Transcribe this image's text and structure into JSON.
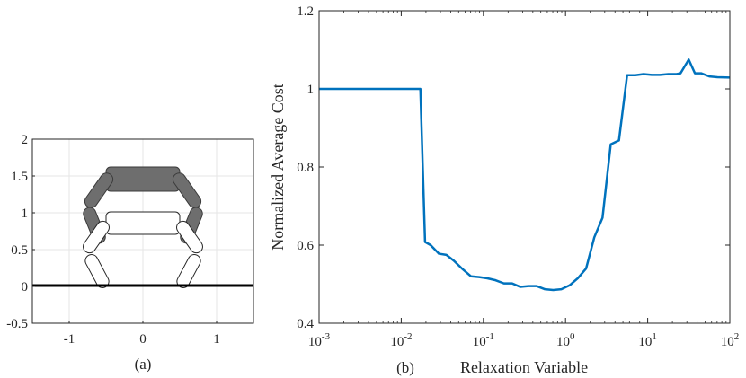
{
  "panel_a": {
    "caption": "(a)",
    "x_ticks": [
      "-1",
      "0",
      "1"
    ],
    "y_ticks": [
      "-0.5",
      "0",
      "0.5",
      "1",
      "1.5",
      "2"
    ],
    "colors": {
      "ground": "#000000",
      "upper_robot_fill": "#6e6e6e",
      "lower_robot_fill": "#ffffff",
      "grid": "#e6e6e6"
    }
  },
  "panel_b": {
    "caption": "(b)",
    "x_ticks": [
      {
        "base": "10",
        "exp": "-3"
      },
      {
        "base": "10",
        "exp": "-2"
      },
      {
        "base": "10",
        "exp": "-1"
      },
      {
        "base": "10",
        "exp": "0"
      },
      {
        "base": "10",
        "exp": "1"
      },
      {
        "base": "10",
        "exp": "2"
      }
    ],
    "y_ticks": [
      "0.4",
      "0.6",
      "0.8",
      "1",
      "1.2"
    ]
  },
  "chart_data": [
    {
      "type": "other",
      "xlim": [
        -1.5,
        1.5
      ],
      "ylim": [
        -0.5,
        2
      ],
      "grid": true
    },
    {
      "type": "line",
      "xlabel": "Relaxation Variable",
      "ylabel": "Normalized Average Cost",
      "xscale": "log",
      "xlim": [
        0.001,
        100
      ],
      "ylim": [
        0.4,
        1.2
      ],
      "grid": false,
      "line_color": "#0072bd",
      "series": [
        {
          "x": [
            0.001,
            0.0171,
            0.0195,
            0.0228,
            0.0288,
            0.0355,
            0.0437,
            0.0562,
            0.0708,
            0.0891,
            0.112,
            0.141,
            0.178,
            0.224,
            0.282,
            0.355,
            0.447,
            0.562,
            0.708,
            0.891,
            1.12,
            1.41,
            1.78,
            2.24,
            2.82,
            3.55,
            4.47,
            5.62,
            7.08,
            8.91,
            11.2,
            14.1,
            17.8,
            22.4,
            25.1,
            31.6,
            37.6,
            44.7,
            56.2,
            70.8,
            100
          ],
          "y": [
            1.0,
            1.0,
            0.608,
            0.6,
            0.578,
            0.575,
            0.56,
            0.538,
            0.52,
            0.518,
            0.515,
            0.51,
            0.502,
            0.502,
            0.493,
            0.495,
            0.495,
            0.487,
            0.485,
            0.487,
            0.497,
            0.515,
            0.54,
            0.62,
            0.67,
            0.858,
            0.868,
            1.035,
            1.035,
            1.038,
            1.036,
            1.036,
            1.038,
            1.038,
            1.04,
            1.075,
            1.04,
            1.04,
            1.032,
            1.03,
            1.029
          ]
        }
      ]
    }
  ]
}
